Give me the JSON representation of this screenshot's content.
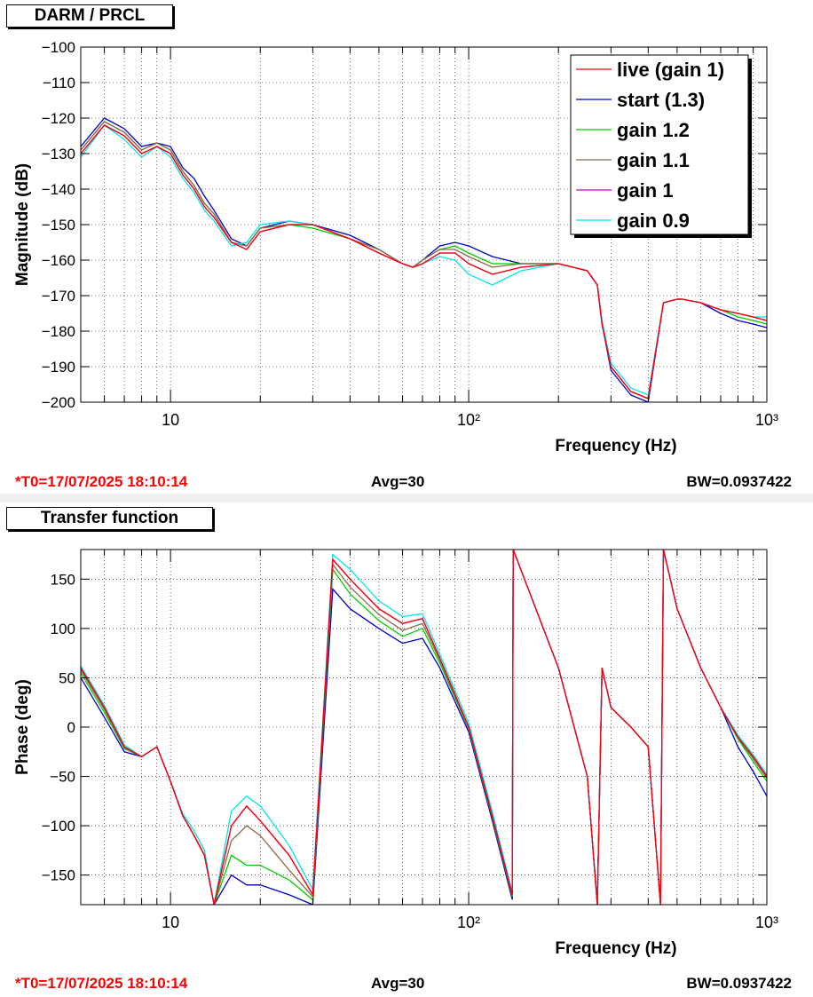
{
  "panels": [
    {
      "title": "DARM / PRCL",
      "footer": {
        "t0": "*T0=17/07/2025 18:10:14",
        "avg": "Avg=30",
        "bw": "BW=0.0937422"
      }
    },
    {
      "title": "Transfer function",
      "footer": {
        "t0": "*T0=17/07/2025 18:10:14",
        "avg": "Avg=30",
        "bw": "BW=0.0937422"
      }
    }
  ],
  "colors": {
    "live": "#ff0000",
    "start": "#0000cc",
    "g12": "#00cc00",
    "g11": "#8b6b4a",
    "g1": "#cc00cc",
    "g09": "#00e5ee",
    "t0": "#ff0000"
  },
  "chart_data": [
    {
      "type": "line",
      "title": "DARM / PRCL",
      "xlabel": "Frequency (Hz)",
      "ylabel": "Magnitude (dB)",
      "xscale": "log",
      "xlim": [
        5,
        1000
      ],
      "ylim": [
        -200,
        -100
      ],
      "xticks": [
        "10",
        "10²",
        "10³"
      ],
      "yticks": [
        "−100",
        "−110",
        "−120",
        "−130",
        "−140",
        "−150",
        "−160",
        "−170",
        "−180",
        "−190",
        "−200"
      ],
      "grid": true,
      "legend_position": "top-right",
      "legend": [
        "live (gain 1)",
        "start (1.3)",
        "gain 1.2",
        "gain 1.1",
        "gain 1",
        "gain 0.9"
      ],
      "x": [
        5,
        6,
        7,
        8,
        9,
        10,
        11,
        12,
        13,
        14,
        16,
        18,
        20,
        25,
        30,
        40,
        50,
        60,
        65,
        70,
        80,
        90,
        100,
        120,
        150,
        200,
        250,
        270,
        280,
        300,
        350,
        400,
        450,
        500,
        520,
        600,
        700,
        800,
        900,
        1000
      ],
      "series": [
        {
          "name": "live (gain 1)",
          "color_key": "live",
          "values": [
            -130,
            -122,
            -125,
            -130,
            -128,
            -130,
            -136,
            -140,
            -145,
            -148,
            -155,
            -157,
            -152,
            -150,
            -150,
            -154,
            -158,
            -161,
            -162,
            -161,
            -158,
            -158,
            -161,
            -164,
            -162,
            -161,
            -163,
            -167,
            -178,
            -190,
            -197,
            -199,
            -172,
            -171,
            -171,
            -172,
            -174,
            -175,
            -176,
            -177
          ]
        },
        {
          "name": "start (1.3)",
          "color_key": "start",
          "values": [
            -128,
            -120,
            -123,
            -128,
            -127,
            -128,
            -134,
            -137,
            -142,
            -146,
            -154,
            -156,
            -151,
            -149,
            -150,
            -153,
            -157,
            -161,
            -162,
            -160,
            -156,
            -155,
            -156,
            -159,
            -161,
            -161,
            -163,
            -167,
            -178,
            -191,
            -198,
            -200,
            -172,
            -171,
            -171,
            -172,
            -175,
            -177,
            -178,
            -179
          ]
        },
        {
          "name": "gain 1.2",
          "color_key": "g12",
          "values": [
            -129,
            -121,
            -124,
            -129,
            -127,
            -129,
            -135,
            -139,
            -144,
            -147,
            -155,
            -156,
            -151,
            -150,
            -151,
            -154,
            -157,
            -161,
            -162,
            -160,
            -157,
            -156,
            -158,
            -161,
            -161,
            -161,
            -163,
            -167,
            -178,
            -190,
            -197,
            -199,
            -172,
            -171,
            -171,
            -172,
            -174,
            -176,
            -177,
            -178
          ]
        },
        {
          "name": "gain 1.1",
          "color_key": "g11",
          "values": [
            -129,
            -121,
            -124,
            -129,
            -127,
            -129,
            -135,
            -139,
            -144,
            -147,
            -155,
            -156,
            -151,
            -150,
            -150,
            -154,
            -157,
            -161,
            -162,
            -160,
            -157,
            -157,
            -159,
            -162,
            -161,
            -161,
            -163,
            -167,
            -178,
            -190,
            -197,
            -199,
            -172,
            -171,
            -171,
            -172,
            -174,
            -175,
            -176,
            -177
          ]
        },
        {
          "name": "gain 1",
          "color_key": "g1",
          "values": [
            -130,
            -122,
            -125,
            -130,
            -128,
            -130,
            -136,
            -140,
            -145,
            -148,
            -155,
            -157,
            -152,
            -150,
            -150,
            -154,
            -158,
            -161,
            -162,
            -161,
            -158,
            -158,
            -161,
            -164,
            -162,
            -161,
            -163,
            -167,
            -178,
            -190,
            -197,
            -199,
            -172,
            -171,
            -171,
            -172,
            -174,
            -175,
            -176,
            -177
          ]
        },
        {
          "name": "gain 0.9",
          "color_key": "g09",
          "values": [
            -131,
            -122,
            -126,
            -131,
            -128,
            -131,
            -137,
            -141,
            -146,
            -149,
            -156,
            -155,
            -150,
            -149,
            -150,
            -154,
            -158,
            -161,
            -162,
            -161,
            -159,
            -160,
            -164,
            -167,
            -163,
            -161,
            -163,
            -167,
            -177,
            -189,
            -196,
            -198,
            -172,
            -171,
            -171,
            -172,
            -174,
            -175,
            -176,
            -176
          ]
        }
      ]
    },
    {
      "type": "line",
      "title": "Transfer function",
      "xlabel": "Frequency (Hz)",
      "ylabel": "Phase (deg)",
      "xscale": "log",
      "xlim": [
        5,
        1000
      ],
      "ylim": [
        -180,
        180
      ],
      "xticks": [
        "10",
        "10²",
        "10³"
      ],
      "yticks": [
        "150",
        "100",
        "50",
        "0",
        "−50",
        "−100",
        "−150"
      ],
      "grid": true,
      "x": [
        5,
        6,
        7,
        8,
        9,
        10,
        11,
        12,
        13,
        14,
        16,
        18,
        20,
        25,
        30,
        35,
        40,
        50,
        60,
        70,
        80,
        100,
        120,
        140,
        141,
        200,
        250,
        270,
        280,
        300,
        350,
        400,
        440,
        450,
        500,
        600,
        700,
        800,
        900,
        1000
      ],
      "series": [
        {
          "name": "live (gain 1)",
          "color_key": "live",
          "values": [
            60,
            20,
            -20,
            -30,
            -20,
            -55,
            -90,
            -110,
            -130,
            -180,
            -100,
            -80,
            -95,
            -130,
            -170,
            170,
            150,
            120,
            105,
            110,
            70,
            0,
            -90,
            -170,
            180,
            60,
            -50,
            -180,
            60,
            20,
            0,
            -20,
            -180,
            180,
            120,
            60,
            20,
            -10,
            -30,
            -50
          ]
        },
        {
          "name": "start (1.3)",
          "color_key": "start",
          "values": [
            50,
            10,
            -25,
            -30,
            -20,
            -55,
            -90,
            -110,
            -130,
            -180,
            -150,
            -160,
            -160,
            -170,
            -180,
            140,
            120,
            100,
            85,
            90,
            60,
            -5,
            -95,
            -175,
            180,
            60,
            -50,
            -180,
            60,
            20,
            0,
            -20,
            -180,
            180,
            120,
            60,
            20,
            -20,
            -45,
            -70
          ]
        },
        {
          "name": "gain 1.2",
          "color_key": "g12",
          "values": [
            55,
            15,
            -22,
            -30,
            -20,
            -55,
            -90,
            -110,
            -130,
            -180,
            -130,
            -140,
            -140,
            -155,
            -175,
            160,
            135,
            108,
            92,
            100,
            65,
            -2,
            -92,
            -172,
            180,
            60,
            -50,
            -180,
            60,
            20,
            0,
            -20,
            -180,
            180,
            120,
            60,
            20,
            -12,
            -35,
            -55
          ]
        },
        {
          "name": "gain 1.1",
          "color_key": "g11",
          "values": [
            58,
            18,
            -21,
            -30,
            -20,
            -55,
            -90,
            -110,
            -130,
            -180,
            -115,
            -100,
            -110,
            -145,
            -172,
            165,
            142,
            114,
            98,
            105,
            68,
            -1,
            -91,
            -171,
            180,
            60,
            -50,
            -180,
            60,
            20,
            0,
            -20,
            -180,
            180,
            120,
            60,
            20,
            -11,
            -32,
            -52
          ]
        },
        {
          "name": "gain 1",
          "color_key": "g1",
          "values": [
            60,
            20,
            -20,
            -30,
            -20,
            -55,
            -90,
            -110,
            -130,
            -180,
            -100,
            -80,
            -95,
            -130,
            -170,
            170,
            150,
            120,
            105,
            110,
            70,
            0,
            -90,
            -170,
            180,
            60,
            -50,
            -180,
            60,
            20,
            0,
            -20,
            -180,
            180,
            120,
            60,
            20,
            -10,
            -30,
            -50
          ]
        },
        {
          "name": "gain 0.9",
          "color_key": "g09",
          "values": [
            62,
            22,
            -18,
            -30,
            -20,
            -55,
            -88,
            -105,
            -125,
            -180,
            -85,
            -70,
            -80,
            -120,
            -165,
            175,
            160,
            128,
            112,
            115,
            74,
            4,
            -86,
            -168,
            180,
            60,
            -50,
            -180,
            60,
            20,
            0,
            -20,
            -180,
            180,
            120,
            60,
            20,
            -8,
            -28,
            -48
          ]
        }
      ]
    }
  ]
}
